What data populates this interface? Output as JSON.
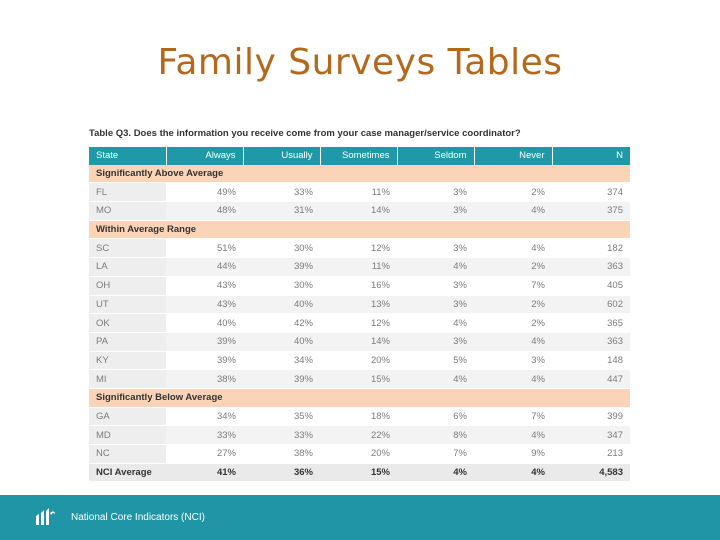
{
  "title": "Family Surveys Tables",
  "caption": "Table Q3. Does the information you receive come from your case manager/service coordinator?",
  "columns": [
    "State",
    "Always",
    "Usually",
    "Sometimes",
    "Seldom",
    "Never",
    "N"
  ],
  "groups": [
    {
      "label": "Significantly Above Average",
      "rows": [
        [
          "FL",
          "49%",
          "33%",
          "11%",
          "3%",
          "2%",
          "374"
        ],
        [
          "MO",
          "48%",
          "31%",
          "14%",
          "3%",
          "4%",
          "375"
        ]
      ]
    },
    {
      "label": "Within Average Range",
      "rows": [
        [
          "SC",
          "51%",
          "30%",
          "12%",
          "3%",
          "4%",
          "182"
        ],
        [
          "LA",
          "44%",
          "39%",
          "11%",
          "4%",
          "2%",
          "363"
        ],
        [
          "OH",
          "43%",
          "30%",
          "16%",
          "3%",
          "7%",
          "405"
        ],
        [
          "UT",
          "43%",
          "40%",
          "13%",
          "3%",
          "2%",
          "602"
        ],
        [
          "OK",
          "40%",
          "42%",
          "12%",
          "4%",
          "2%",
          "365"
        ],
        [
          "PA",
          "39%",
          "40%",
          "14%",
          "3%",
          "4%",
          "363"
        ],
        [
          "KY",
          "39%",
          "34%",
          "20%",
          "5%",
          "3%",
          "148"
        ],
        [
          "MI",
          "38%",
          "39%",
          "15%",
          "4%",
          "4%",
          "447"
        ]
      ]
    },
    {
      "label": "Significantly Below Average",
      "rows": [
        [
          "GA",
          "34%",
          "35%",
          "18%",
          "6%",
          "7%",
          "399"
        ],
        [
          "MD",
          "33%",
          "33%",
          "22%",
          "8%",
          "4%",
          "347"
        ],
        [
          "NC",
          "27%",
          "38%",
          "20%",
          "7%",
          "9%",
          "213"
        ]
      ]
    }
  ],
  "average": [
    "NCI Average",
    "41%",
    "36%",
    "15%",
    "4%",
    "4%",
    "4,583"
  ],
  "footer": {
    "org": "National Core Indicators (NCI)",
    "logo_icon": "nci-logo-icon"
  },
  "colors": {
    "title": "#b4681c",
    "header": "#1f99a8",
    "group_band": "#fbd3b6",
    "footer": "#1f95a5"
  }
}
